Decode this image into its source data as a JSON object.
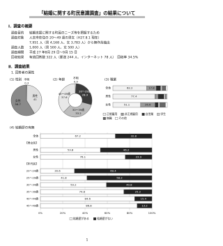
{
  "title": "「結婚に関する町民意識調査」の結果について",
  "section1": {
    "heading": "Ⅰ．調査の概要",
    "items": [
      {
        "label": "調査目的",
        "lines": [
          "結婚支援に関する町民のニーズ等を把握するため"
        ]
      },
      {
        "label": "調査対象",
        "lines": [
          "人吉市在住の 20～49 歳の男女（H27.8.1 現在）",
          "7,951 人（男 4,168 人、女 3,783 人）から無作為抽出"
        ]
      },
      {
        "label": "調査人数",
        "lines": [
          "1,000 人（男 500 人、女 500 人）"
        ]
      },
      {
        "label": "調査期間",
        "lines": [
          "平成 27 年8月 29 日～9月 15 日"
        ]
      },
      {
        "label": "回収結果",
        "lines": [
          "有効回答数 322 人（郵送 244 人、インターネット 78 人）　回収率 34.5%"
        ]
      }
    ]
  },
  "section2": {
    "heading": "Ⅱ．調査結果",
    "subheading": "1. 回答者の属性"
  },
  "chart_data": [
    {
      "type": "pie",
      "title": "(1) 性別",
      "categories": [
        "不明",
        "男性",
        "女性"
      ],
      "values": [
        0.3,
        41.0,
        58.7
      ],
      "colors": [
        "#ffffff",
        "#e0e0e0",
        "#8a8a8a"
      ]
    },
    {
      "type": "donut",
      "title": "(2) 年齢",
      "categories": [
        "不明",
        "20～29歳",
        "30～39歳",
        "40～49歳"
      ],
      "values": [
        0.9,
        28.3,
        33.2,
        37.6
      ],
      "colors": [
        "#ffffff",
        "#3a3a3a",
        "#bdbdbd",
        "#e8e8e8"
      ]
    },
    {
      "type": "stacked_bar",
      "title": "(3) 職業",
      "categories": [
        "全体",
        "男性",
        "女性"
      ],
      "series": [
        {
          "name": "正規雇用",
          "color": "#f2f2f2",
          "values": [
            62.2,
            77.4,
            51.1
          ]
        },
        {
          "name": "非正規雇用",
          "color": "#9a9a9a",
          "values": [
            17.8,
            6.0,
            26.6
          ]
        },
        {
          "name": "自営業",
          "color": "#2b2b2b",
          "values": [
            7.7,
            10.5,
            5.6
          ]
        },
        {
          "name": "学生",
          "color": "#d0d0d0",
          "values": [
            3.1,
            3.0,
            3.2
          ]
        },
        {
          "name": "無職",
          "color": "#666666",
          "values": [
            6.6,
            1.5,
            10.2
          ]
        },
        {
          "name": "その他",
          "color": "#ffffff",
          "values": [
            2.6,
            1.6,
            3.3
          ]
        }
      ],
      "xlim": [
        0,
        100
      ]
    },
    {
      "type": "stacked_bar",
      "title": "(4) 結婚歴の有無",
      "categories": [
        "全体",
        "【男女別】",
        "男性",
        "女性",
        "【年代別】",
        "20～24歳",
        "25～29歳",
        "30～34歳",
        "35～39歳",
        "40～44歳",
        "45～49歳"
      ],
      "series": [
        {
          "name": "結婚歴がある",
          "color": "#ffffff",
          "values": [
            67.2,
            null,
            53.8,
            76.1,
            null,
            30.6,
            41.8,
            59.2,
            74.8,
            84.6,
            86.8
          ]
        },
        {
          "name": "結婚歴がない",
          "color": "#222222",
          "values": [
            32.8,
            null,
            46.2,
            23.9,
            null,
            69.4,
            58.2,
            40.8,
            25.2,
            15.4,
            13.2
          ]
        }
      ],
      "xlim": [
        0,
        100
      ],
      "xticks": [
        {
          "value": 0,
          "label": "0%"
        },
        {
          "value": 20,
          "label": "20%"
        },
        {
          "value": 40,
          "label": "40%"
        },
        {
          "value": 60,
          "label": "60%"
        },
        {
          "value": 80,
          "label": "80%"
        },
        {
          "value": 100,
          "label": "100%"
        }
      ]
    }
  ],
  "page_number": "1"
}
